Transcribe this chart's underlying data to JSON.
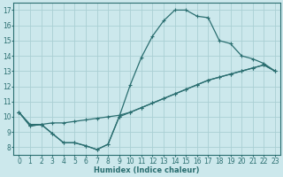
{
  "bg_color": "#cce8ec",
  "grid_color": "#aacfd4",
  "line_color": "#2a6e70",
  "marker": "+",
  "markersize": 3.5,
  "linewidth": 0.9,
  "xlabel": "Humidex (Indice chaleur)",
  "xlabel_fontsize": 6,
  "tick_fontsize": 5.5,
  "ylim": [
    7.5,
    17.5
  ],
  "xlim": [
    -0.5,
    23.5
  ],
  "yticks": [
    8,
    9,
    10,
    11,
    12,
    13,
    14,
    15,
    16,
    17
  ],
  "xticks": [
    0,
    1,
    2,
    3,
    4,
    5,
    6,
    7,
    8,
    9,
    10,
    11,
    12,
    13,
    14,
    15,
    16,
    17,
    18,
    19,
    20,
    21,
    22,
    23
  ],
  "line1_x": [
    0,
    1,
    2,
    3,
    4,
    5,
    6,
    7,
    8,
    9,
    10,
    11,
    12,
    13,
    14,
    15,
    16,
    17,
    18,
    19,
    20,
    21,
    22,
    23
  ],
  "line1_y": [
    10.3,
    9.4,
    9.5,
    8.9,
    8.3,
    8.3,
    8.1,
    7.85,
    8.2,
    10.0,
    12.1,
    13.9,
    15.3,
    16.3,
    17.0,
    17.0,
    16.6,
    16.5,
    15.0,
    14.8,
    14.0,
    13.8,
    13.5,
    13.0
  ],
  "line2_x": [
    0,
    1,
    2,
    3,
    4,
    5,
    6,
    7,
    8,
    9,
    10,
    11,
    12,
    13,
    14,
    15,
    16,
    17,
    18,
    19,
    20,
    21,
    22,
    23
  ],
  "line2_y": [
    10.3,
    9.5,
    9.5,
    9.6,
    9.6,
    9.7,
    9.8,
    9.9,
    10.0,
    10.1,
    10.3,
    10.6,
    10.9,
    11.2,
    11.5,
    11.8,
    12.1,
    12.4,
    12.6,
    12.8,
    13.0,
    13.2,
    13.4,
    13.0
  ],
  "line3_x": [
    0,
    1,
    2,
    3,
    4,
    5,
    6,
    7,
    8,
    9,
    10,
    11,
    12,
    13,
    14,
    15,
    16,
    17,
    18,
    19,
    20,
    21,
    22,
    23
  ],
  "line3_y": [
    10.3,
    9.4,
    9.5,
    8.9,
    8.3,
    8.3,
    8.1,
    7.85,
    8.2,
    10.0,
    10.3,
    10.6,
    10.9,
    11.2,
    11.5,
    11.8,
    12.1,
    12.4,
    12.6,
    12.8,
    13.0,
    13.2,
    13.4,
    13.0
  ]
}
